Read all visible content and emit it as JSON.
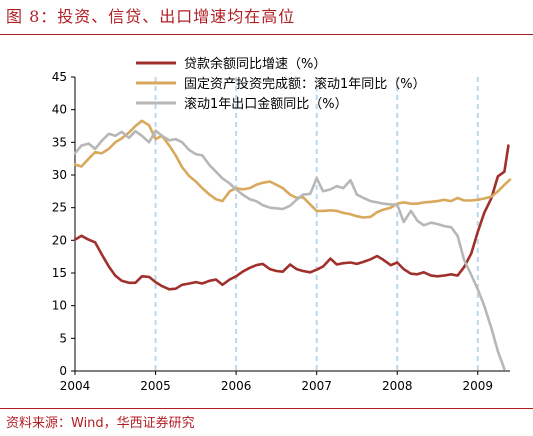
{
  "figure": {
    "title": "图 8：投资、信贷、出口增速均在高位",
    "source": "资料来源：Wind，华西证券研究"
  },
  "chart_data": {
    "type": "line",
    "ylim": [
      0,
      45
    ],
    "yticks": [
      0,
      5,
      10,
      15,
      20,
      25,
      30,
      35,
      40,
      45
    ],
    "xlim": [
      2004.0,
      2009.4
    ],
    "xticks": [
      2004,
      2005,
      2006,
      2007,
      2008,
      2009
    ],
    "xtick_labels": [
      "2004",
      "2005",
      "2006",
      "2007",
      "2008",
      "2009"
    ],
    "vgrid_dashed": true,
    "legend": "top",
    "series": [
      {
        "name": "贷款余额同比增速（%）",
        "color": "#a0302c",
        "x": [
          2004.0,
          2004.08,
          2004.17,
          2004.25,
          2004.33,
          2004.42,
          2004.5,
          2004.58,
          2004.67,
          2004.75,
          2004.83,
          2004.92,
          2005.0,
          2005.08,
          2005.17,
          2005.25,
          2005.33,
          2005.42,
          2005.5,
          2005.58,
          2005.67,
          2005.75,
          2005.83,
          2005.92,
          2006.0,
          2006.08,
          2006.17,
          2006.25,
          2006.33,
          2006.42,
          2006.5,
          2006.58,
          2006.67,
          2006.75,
          2006.83,
          2006.92,
          2007.0,
          2007.08,
          2007.17,
          2007.25,
          2007.33,
          2007.42,
          2007.5,
          2007.58,
          2007.67,
          2007.75,
          2007.83,
          2007.92,
          2008.0,
          2008.08,
          2008.17,
          2008.25,
          2008.33,
          2008.42,
          2008.5,
          2008.58,
          2008.67,
          2008.75,
          2008.83,
          2008.92,
          2009.0,
          2009.08,
          2009.17,
          2009.25,
          2009.33,
          2009.38
        ],
        "values": [
          20.1,
          20.7,
          20.1,
          19.7,
          17.9,
          16.0,
          14.6,
          13.8,
          13.5,
          13.5,
          14.5,
          14.4,
          13.6,
          13.0,
          12.5,
          12.6,
          13.2,
          13.4,
          13.6,
          13.4,
          13.8,
          14.0,
          13.2,
          14.0,
          14.5,
          15.2,
          15.8,
          16.2,
          16.4,
          15.6,
          15.3,
          15.2,
          16.3,
          15.6,
          15.3,
          15.1,
          15.5,
          16.0,
          17.2,
          16.3,
          16.5,
          16.6,
          16.4,
          16.7,
          17.1,
          17.6,
          17.0,
          16.2,
          16.6,
          15.6,
          14.9,
          14.8,
          15.1,
          14.6,
          14.5,
          14.6,
          14.8,
          14.6,
          15.9,
          18.0,
          21.3,
          24.2,
          26.5,
          29.8,
          30.5,
          34.5
        ]
      },
      {
        "name": "固定资产投资完成额：滚动1年同比（%）",
        "color": "#d8a95c",
        "x": [
          2004.0,
          2004.08,
          2004.17,
          2004.25,
          2004.33,
          2004.42,
          2004.5,
          2004.58,
          2004.67,
          2004.75,
          2004.83,
          2004.92,
          2005.0,
          2005.08,
          2005.17,
          2005.25,
          2005.33,
          2005.42,
          2005.5,
          2005.58,
          2005.67,
          2005.75,
          2005.83,
          2005.92,
          2006.0,
          2006.08,
          2006.17,
          2006.25,
          2006.33,
          2006.42,
          2006.5,
          2006.58,
          2006.67,
          2006.75,
          2006.83,
          2006.92,
          2007.0,
          2007.08,
          2007.17,
          2007.25,
          2007.33,
          2007.42,
          2007.5,
          2007.58,
          2007.67,
          2007.75,
          2007.83,
          2007.92,
          2008.0,
          2008.08,
          2008.17,
          2008.25,
          2008.33,
          2008.42,
          2008.5,
          2008.58,
          2008.67,
          2008.75,
          2008.83,
          2008.92,
          2009.0,
          2009.08,
          2009.17,
          2009.25,
          2009.33,
          2009.4
        ],
        "values": [
          31.6,
          31.3,
          32.5,
          33.5,
          33.3,
          34.0,
          35.0,
          35.6,
          36.5,
          37.5,
          38.3,
          37.6,
          35.5,
          36.0,
          34.5,
          33.0,
          31.2,
          29.8,
          29.0,
          28.0,
          27.0,
          26.3,
          26.0,
          27.5,
          28.0,
          27.8,
          28.0,
          28.5,
          28.8,
          29.0,
          28.5,
          28.0,
          27.0,
          26.5,
          26.6,
          25.5,
          24.5,
          24.5,
          24.6,
          24.5,
          24.2,
          24.0,
          23.7,
          23.5,
          23.6,
          24.3,
          24.7,
          25.0,
          25.6,
          25.8,
          25.6,
          25.6,
          25.8,
          25.9,
          26.0,
          26.2,
          26.0,
          26.5,
          26.1,
          26.1,
          26.2,
          26.4,
          26.7,
          27.5,
          28.5,
          29.3
        ]
      },
      {
        "name": "滚动1年出口金额同比（%）",
        "color": "#b7b7b7",
        "x": [
          2004.0,
          2004.08,
          2004.17,
          2004.25,
          2004.33,
          2004.42,
          2004.5,
          2004.58,
          2004.67,
          2004.75,
          2004.83,
          2004.92,
          2005.0,
          2005.08,
          2005.17,
          2005.25,
          2005.33,
          2005.42,
          2005.5,
          2005.58,
          2005.67,
          2005.75,
          2005.83,
          2005.92,
          2006.0,
          2006.08,
          2006.17,
          2006.25,
          2006.33,
          2006.42,
          2006.5,
          2006.58,
          2006.67,
          2006.75,
          2006.83,
          2006.92,
          2007.0,
          2007.08,
          2007.17,
          2007.25,
          2007.33,
          2007.42,
          2007.5,
          2007.58,
          2007.67,
          2007.75,
          2007.83,
          2007.92,
          2008.0,
          2008.08,
          2008.17,
          2008.25,
          2008.33,
          2008.42,
          2008.5,
          2008.58,
          2008.67,
          2008.75,
          2008.83,
          2008.92,
          2009.0,
          2009.08,
          2009.17,
          2009.25,
          2009.33
        ],
        "values": [
          33.3,
          34.5,
          34.8,
          34.0,
          35.2,
          36.3,
          36.0,
          36.6,
          35.7,
          36.7,
          36.0,
          35.0,
          36.8,
          36.0,
          35.3,
          35.5,
          35.0,
          33.8,
          33.2,
          33.0,
          31.5,
          30.5,
          29.5,
          28.7,
          27.8,
          27.0,
          26.3,
          26.0,
          25.4,
          25.0,
          24.9,
          24.8,
          25.3,
          26.2,
          27.0,
          27.1,
          29.5,
          27.5,
          27.8,
          28.3,
          28.0,
          29.2,
          27.0,
          26.5,
          26.0,
          25.8,
          25.6,
          25.5,
          25.5,
          22.8,
          24.5,
          23.0,
          22.3,
          22.7,
          22.5,
          22.2,
          22.0,
          20.7,
          17.0,
          14.7,
          12.5,
          10.0,
          6.5,
          3.0,
          0.3
        ]
      }
    ]
  }
}
